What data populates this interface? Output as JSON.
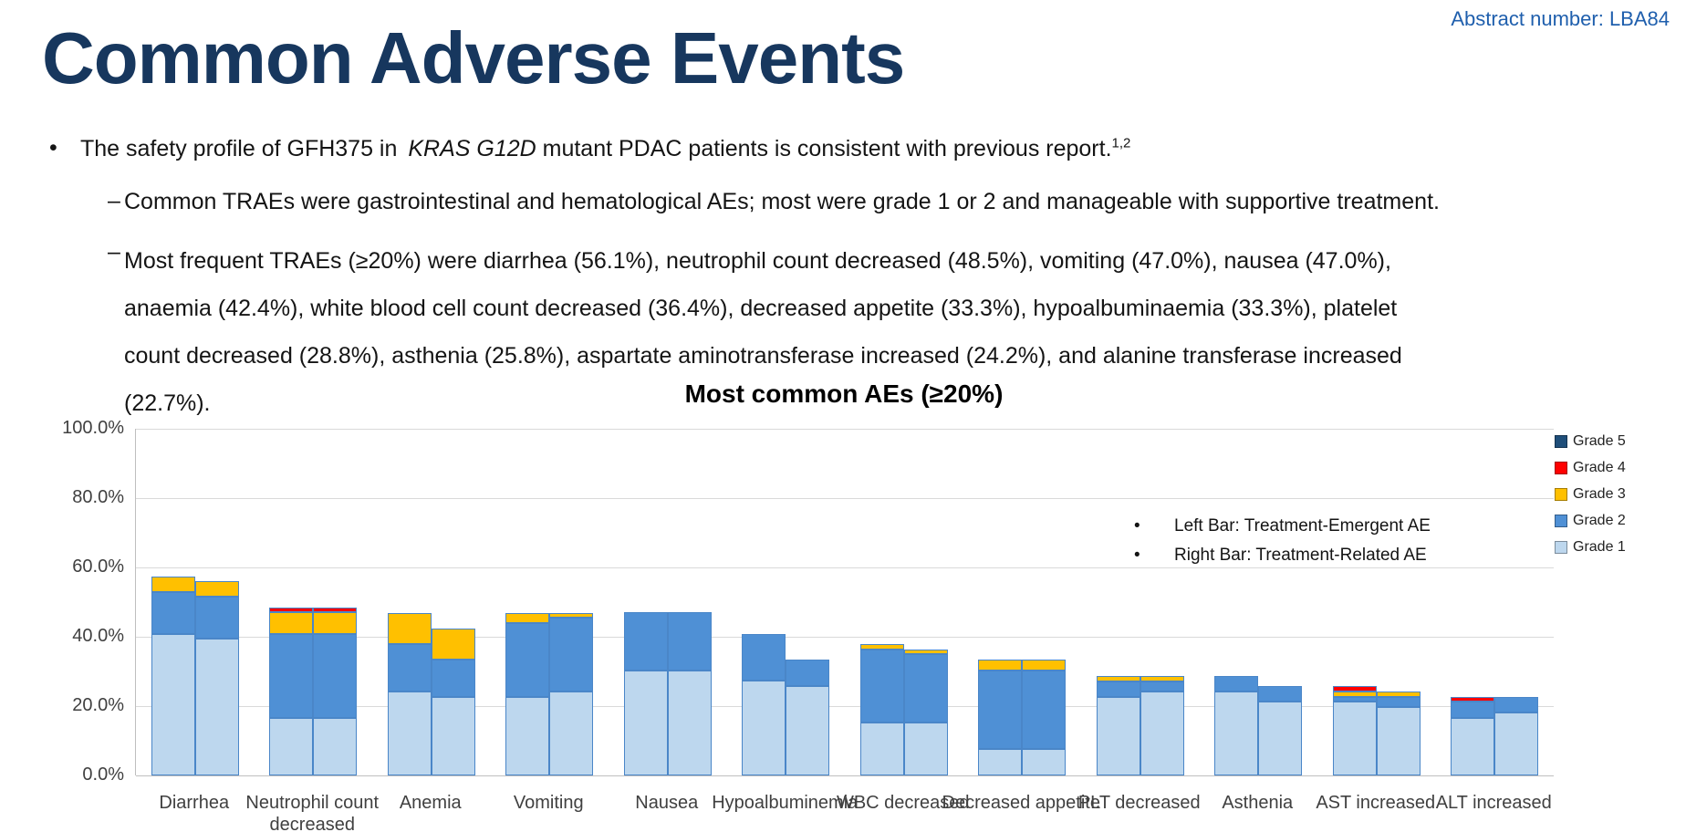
{
  "header": {
    "abstract": "Abstract number: LBA84",
    "title": "Common Adverse Events"
  },
  "bullets": {
    "b1_marker": "•",
    "dash_marker": "–",
    "b1_pre": "The safety profile of GFH375 in ",
    "b1_italic": "KRAS G12D",
    "b1_post": " mutant PDAC patients is consistent with previous report.",
    "b1_sup": "1,2",
    "b2": "Common TRAEs were gastrointestinal and hematological AEs; most were grade 1 or 2 and manageable with supportive treatment.",
    "b3": "Most frequent TRAEs (≥20%) were diarrhea (56.1%), neutrophil count decreased (48.5%), vomiting (47.0%), nausea (47.0%), anaemia (42.4%), white blood cell count decreased (36.4%), decreased appetite (33.3%), hypoalbuminaemia (33.3%), platelet count decreased (28.8%), asthenia (25.8%), aspartate aminotransferase increased (24.2%), and alanine transferase increased (22.7%)."
  },
  "chart_data": {
    "type": "bar",
    "stacked": true,
    "title": "Most common AEs (≥20%)",
    "ylabel": "",
    "xlabel": "",
    "ylim": [
      0,
      100
    ],
    "grid": true,
    "legend_position": "right",
    "y_ticks": [
      "100.0%",
      "80.0%",
      "60.0%",
      "40.0%",
      "20.0%",
      "0.0%"
    ],
    "note_marker": "•",
    "notes": [
      "Left Bar: Treatment-Emergent AE",
      "Right Bar: Treatment-Related AE"
    ],
    "legend": [
      {
        "label": "Grade 5",
        "color": "#1F4E79"
      },
      {
        "label": "Grade 4",
        "color": "#FF0000"
      },
      {
        "label": "Grade 3",
        "color": "#FFC000"
      },
      {
        "label": "Grade 2",
        "color": "#4F90D5"
      },
      {
        "label": "Grade 1",
        "color": "#BDD7EE"
      }
    ],
    "grade_order": [
      "grade1",
      "grade2",
      "grade3",
      "grade4",
      "grade5"
    ],
    "colors": {
      "grade1": "#BDD7EE",
      "grade2": "#4F90D5",
      "grade3": "#FFC000",
      "grade4": "#FF0000",
      "grade5": "#1F4E79",
      "segment_border": "#4A86C8"
    },
    "categories": [
      "Diarrhea",
      "Neutrophil count decreased",
      "Anemia",
      "Vomiting",
      "Nausea",
      "Hypoalbuminemia",
      "WBC decreased",
      "Decreased appetite",
      "PLT decreased",
      "Asthenia",
      "AST increased",
      "ALT increased"
    ],
    "series": [
      {
        "name": "Treatment-Emergent AE (left bar)",
        "stacks": [
          [
            40.9,
            12.1,
            4.5,
            0,
            0
          ],
          [
            16.7,
            24.2,
            6.1,
            1.5,
            0
          ],
          [
            24.2,
            13.6,
            9.1,
            0,
            0
          ],
          [
            22.7,
            21.2,
            3.0,
            0,
            0
          ],
          [
            30.3,
            16.7,
            0,
            0,
            0
          ],
          [
            27.3,
            13.6,
            0,
            0,
            0
          ],
          [
            15.2,
            21.2,
            1.5,
            0,
            0
          ],
          [
            7.6,
            22.7,
            3.0,
            0,
            0
          ],
          [
            22.7,
            4.5,
            1.5,
            0,
            0
          ],
          [
            24.2,
            4.5,
            0,
            0,
            0
          ],
          [
            21.2,
            1.5,
            1.5,
            1.5,
            0
          ],
          [
            16.7,
            4.5,
            0,
            1.5,
            0
          ]
        ]
      },
      {
        "name": "Treatment-Related AE (right bar)",
        "stacks": [
          [
            39.4,
            12.1,
            4.5,
            0,
            0
          ],
          [
            16.7,
            24.2,
            6.1,
            1.5,
            0
          ],
          [
            22.7,
            10.6,
            9.1,
            0,
            0
          ],
          [
            24.2,
            21.2,
            1.5,
            0,
            0
          ],
          [
            30.3,
            16.7,
            0,
            0,
            0
          ],
          [
            25.8,
            7.6,
            0,
            0,
            0
          ],
          [
            15.2,
            19.7,
            1.5,
            0,
            0
          ],
          [
            7.6,
            22.7,
            3.0,
            0,
            0
          ],
          [
            24.2,
            3.0,
            1.5,
            0,
            0
          ],
          [
            21.2,
            4.5,
            0,
            0,
            0
          ],
          [
            19.7,
            3.0,
            1.5,
            0,
            0
          ],
          [
            18.2,
            4.5,
            0,
            0,
            0
          ]
        ]
      }
    ]
  }
}
